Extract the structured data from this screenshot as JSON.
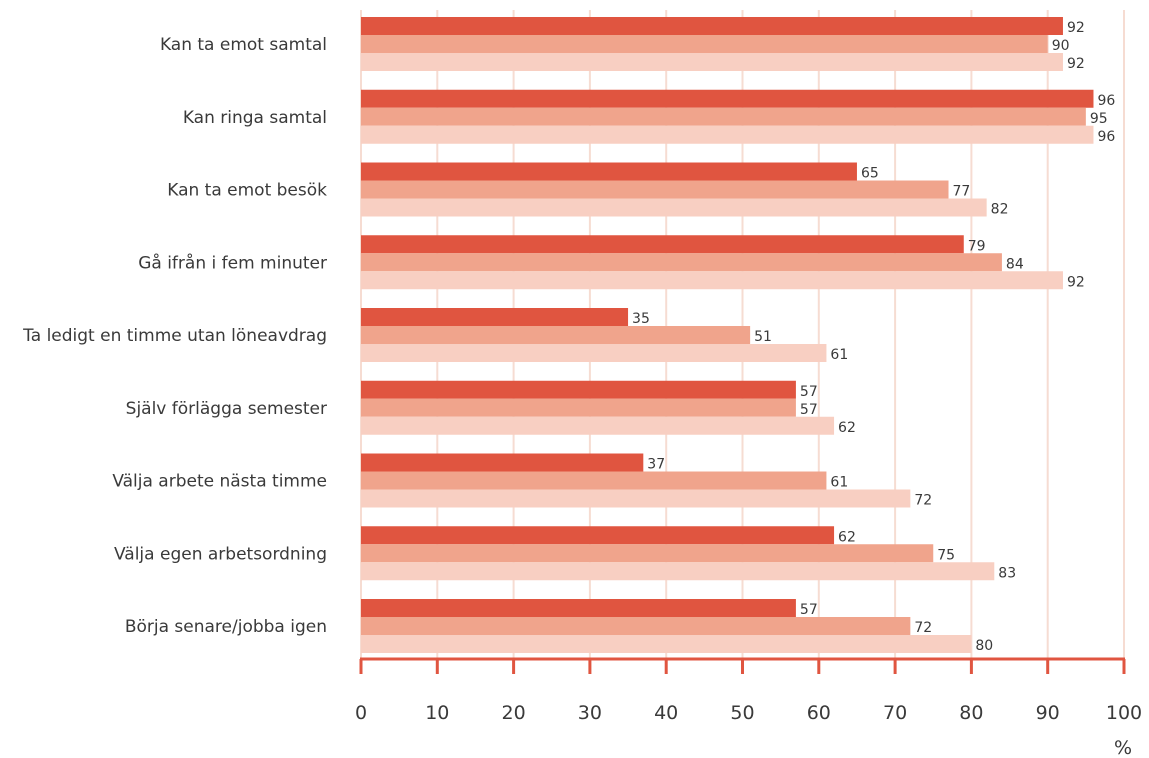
{
  "chart_data": {
    "type": "bar",
    "orientation": "horizontal",
    "title": "",
    "xlabel": "",
    "ylabel": "",
    "unit_label": "%",
    "xlim": [
      0,
      100
    ],
    "x_ticks": [
      0,
      10,
      20,
      30,
      40,
      50,
      60,
      70,
      80,
      90,
      100
    ],
    "grid": true,
    "legend": "none",
    "categories": [
      "Kan ta emot samtal",
      "Kan ringa samtal",
      "Kan ta emot besök",
      "Gå ifrån i fem minuter",
      "Ta ledigt en timme utan löneavdrag",
      "Själv förlägga semester",
      "Välja arbete nästa timme",
      "Välja egen arbetsordning",
      "Börja senare/jobba igen"
    ],
    "series": [
      {
        "color": "#e05540",
        "values": [
          92,
          96,
          65,
          79,
          35,
          57,
          37,
          62,
          57
        ]
      },
      {
        "color": "#f0a48c",
        "values": [
          90,
          95,
          77,
          84,
          51,
          57,
          61,
          75,
          72
        ]
      },
      {
        "color": "#f8cfc2",
        "values": [
          92,
          96,
          82,
          92,
          61,
          62,
          72,
          83,
          80
        ]
      }
    ],
    "colors": {
      "grid": "#f6dcd2",
      "axis": "#e05540",
      "text": "#3a3a3a"
    }
  }
}
